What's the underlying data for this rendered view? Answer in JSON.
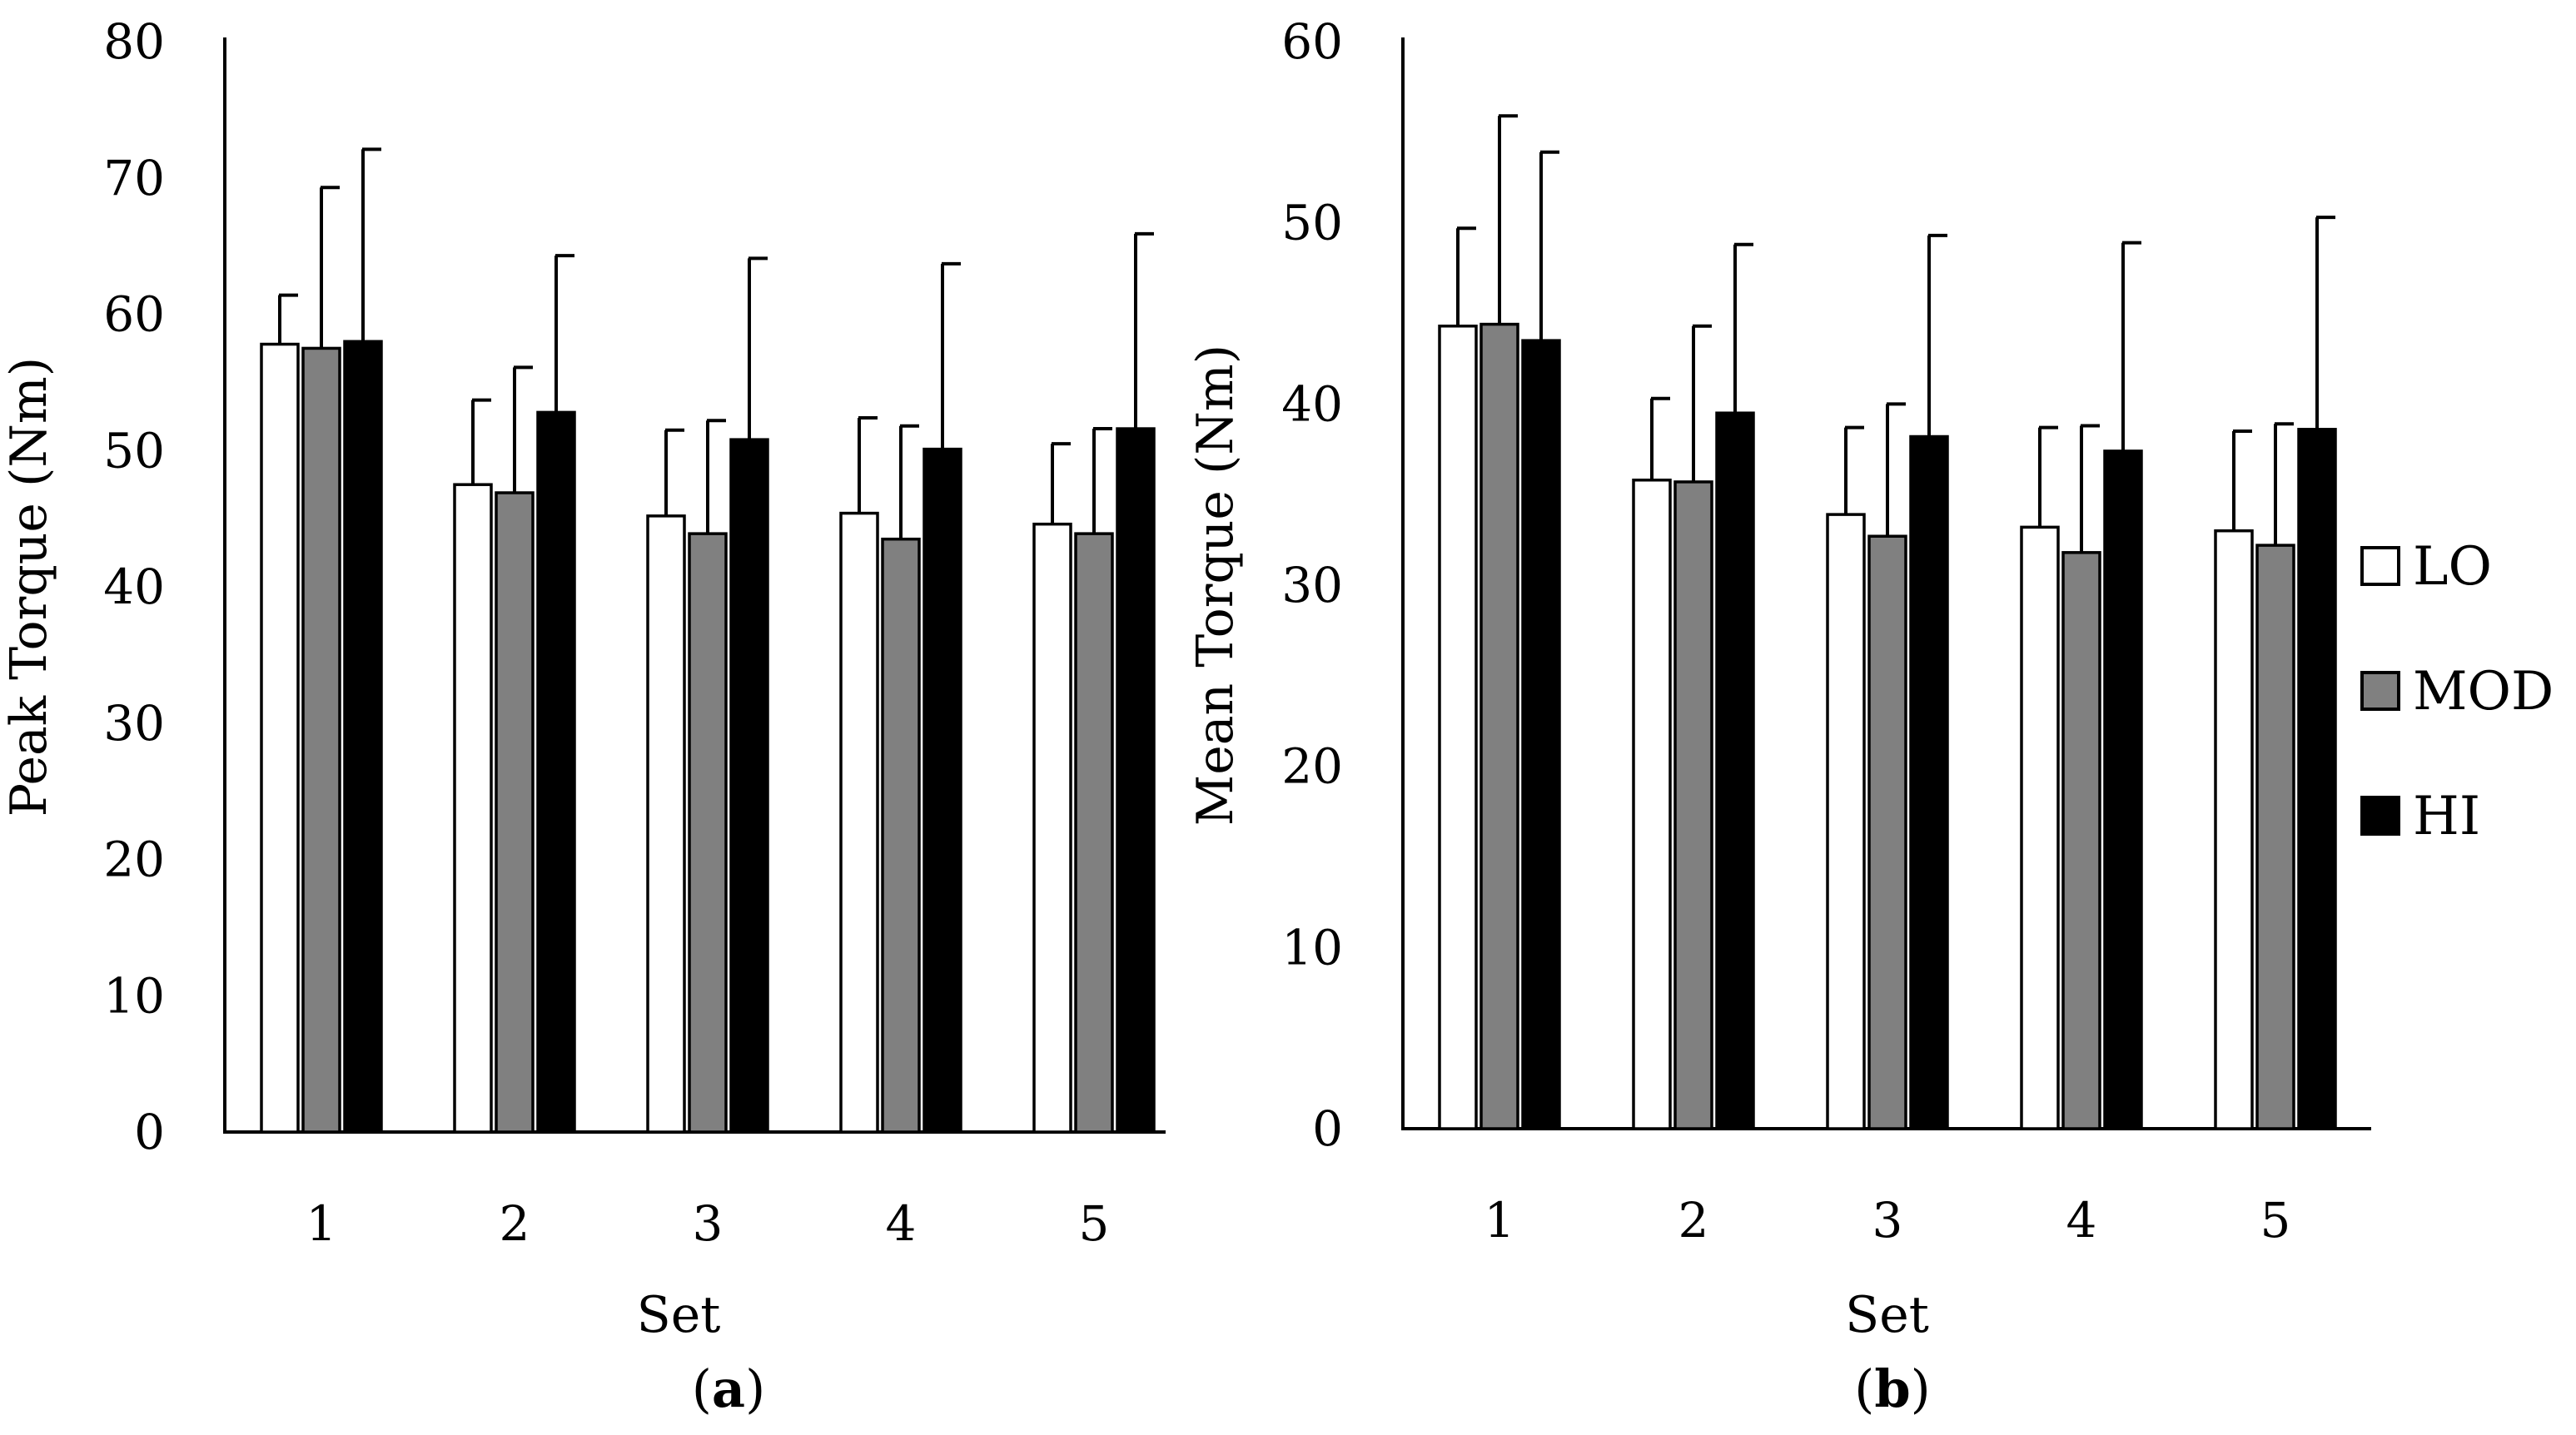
{
  "chart_data": [
    {
      "type": "bar",
      "panel": "a",
      "panel_label": "a",
      "xlabel": "Set",
      "ylabel": "Peak Torque (Nm)",
      "ylim": [
        0,
        80
      ],
      "yticks": [
        0,
        10,
        20,
        30,
        40,
        50,
        60,
        70,
        80
      ],
      "categories": [
        "1",
        "2",
        "3",
        "4",
        "5"
      ],
      "series": [
        {
          "name": "LO",
          "color": "#ffffff",
          "values": [
            57.8,
            47.5,
            45.2,
            45.4,
            44.6
          ],
          "errors": [
            3.6,
            6.2,
            6.3,
            7.0,
            5.9
          ]
        },
        {
          "name": "MOD",
          "color": "#808080",
          "values": [
            57.5,
            46.9,
            43.9,
            43.5,
            43.9
          ],
          "errors": [
            11.8,
            9.2,
            8.3,
            8.3,
            7.7
          ]
        },
        {
          "name": "HI",
          "color": "#000000",
          "values": [
            58.0,
            52.8,
            50.8,
            50.1,
            51.6
          ],
          "errors": [
            14.1,
            11.5,
            13.3,
            13.6,
            14.3
          ]
        }
      ],
      "legend": "none"
    },
    {
      "type": "bar",
      "panel": "b",
      "panel_label": "b",
      "xlabel": "Set",
      "ylabel": "Mean Torque (Nm)",
      "ylim": [
        0,
        60
      ],
      "yticks": [
        0,
        10,
        20,
        30,
        40,
        50,
        60
      ],
      "categories": [
        "1",
        "2",
        "3",
        "4",
        "5"
      ],
      "series": [
        {
          "name": "LO",
          "color": "#ffffff",
          "values": [
            44.3,
            35.8,
            33.9,
            33.2,
            33.0
          ],
          "errors": [
            5.4,
            4.5,
            4.8,
            5.5,
            5.5
          ]
        },
        {
          "name": "MOD",
          "color": "#808080",
          "values": [
            44.4,
            35.7,
            32.7,
            31.8,
            32.2
          ],
          "errors": [
            11.5,
            8.6,
            7.3,
            7.0,
            6.7
          ]
        },
        {
          "name": "HI",
          "color": "#000000",
          "values": [
            43.5,
            39.5,
            38.2,
            37.4,
            38.6
          ],
          "errors": [
            10.4,
            9.3,
            11.1,
            11.5,
            11.7
          ]
        }
      ],
      "legend": "right"
    }
  ]
}
